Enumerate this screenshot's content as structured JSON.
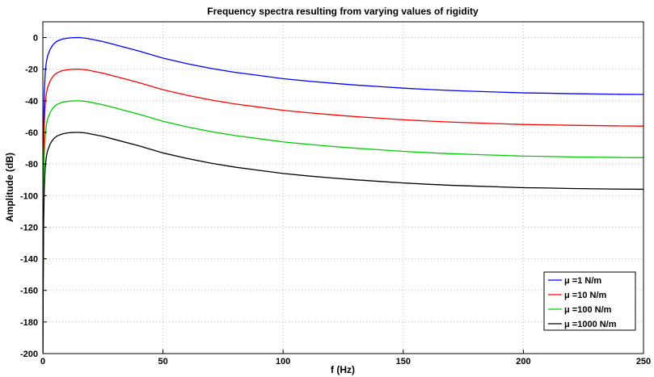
{
  "chart_data": {
    "type": "line",
    "title": "Frequency spectra resulting from varying values of rigidity",
    "xlabel": "f (Hz)",
    "ylabel": "Amplitude (dB)",
    "xlim": [
      0,
      250
    ],
    "ylim": [
      -200,
      10
    ],
    "xticks": [
      0,
      50,
      100,
      150,
      200,
      250
    ],
    "yticks": [
      0,
      -20,
      -40,
      -60,
      -80,
      -100,
      -120,
      -140,
      -160,
      -180,
      -200
    ],
    "grid": true,
    "legend_position": "lower-right",
    "x": [
      0,
      0.3,
      0.6,
      1,
      1.5,
      2,
      3,
      4,
      5,
      6,
      8,
      10,
      12,
      14,
      15,
      16,
      18,
      20,
      25,
      30,
      40,
      50,
      60,
      70,
      80,
      90,
      100,
      110,
      120,
      130,
      140,
      150,
      160,
      170,
      180,
      190,
      200,
      210,
      220,
      230,
      240,
      250
    ],
    "series": [
      {
        "name": "μ =1 N/m",
        "color": "#0000ff",
        "values": [
          -200,
          -60,
          -35,
          -22,
          -15,
          -11.5,
          -7.5,
          -5,
          -3.3,
          -2.2,
          -1,
          -0.4,
          -0.1,
          0,
          0,
          -0.1,
          -0.4,
          -1,
          -2.5,
          -4.5,
          -8.5,
          -13,
          -16.5,
          -19.5,
          -22,
          -24,
          -26,
          -27.5,
          -28.8,
          -30,
          -31,
          -32,
          -32.8,
          -33.5,
          -34,
          -34.5,
          -35,
          -35.2,
          -35.5,
          -35.7,
          -35.9,
          -36
        ]
      },
      {
        "name": "μ =10 N/m",
        "color": "#ff0000",
        "values": [
          -200,
          -80,
          -55,
          -42,
          -35,
          -31.5,
          -27.5,
          -25,
          -23.3,
          -22.2,
          -21,
          -20.4,
          -20.1,
          -20,
          -20,
          -20.1,
          -20.4,
          -21,
          -22.5,
          -24.5,
          -28.5,
          -33,
          -36.5,
          -39.5,
          -42,
          -44,
          -46,
          -47.5,
          -48.8,
          -50,
          -51,
          -52,
          -52.8,
          -53.5,
          -54,
          -54.5,
          -55,
          -55.2,
          -55.5,
          -55.7,
          -55.9,
          -56
        ]
      },
      {
        "name": "μ =100 N/m",
        "color": "#00cc00",
        "values": [
          -200,
          -100,
          -75,
          -62,
          -55,
          -51.5,
          -47.5,
          -45,
          -43.3,
          -42.2,
          -41,
          -40.4,
          -40.1,
          -40,
          -40,
          -40.1,
          -40.4,
          -41,
          -42.5,
          -44.5,
          -48.5,
          -53,
          -56.5,
          -59.5,
          -62,
          -64,
          -66,
          -67.5,
          -68.8,
          -70,
          -71,
          -72,
          -72.8,
          -73.5,
          -74,
          -74.5,
          -75,
          -75.2,
          -75.5,
          -75.7,
          -75.9,
          -76
        ]
      },
      {
        "name": "μ =1000 N/m",
        "color": "#000000",
        "values": [
          -200,
          -120,
          -95,
          -82,
          -75,
          -71.5,
          -67.5,
          -65,
          -63.3,
          -62.2,
          -61,
          -60.4,
          -60.1,
          -60,
          -60,
          -60.1,
          -60.4,
          -61,
          -62.5,
          -64.5,
          -68.5,
          -73,
          -76.5,
          -79.5,
          -82,
          -84,
          -86,
          -87.5,
          -88.8,
          -90,
          -91,
          -92,
          -92.8,
          -93.5,
          -94,
          -94.5,
          -95,
          -95.2,
          -95.5,
          -95.7,
          -95.9,
          -96
        ]
      }
    ]
  }
}
